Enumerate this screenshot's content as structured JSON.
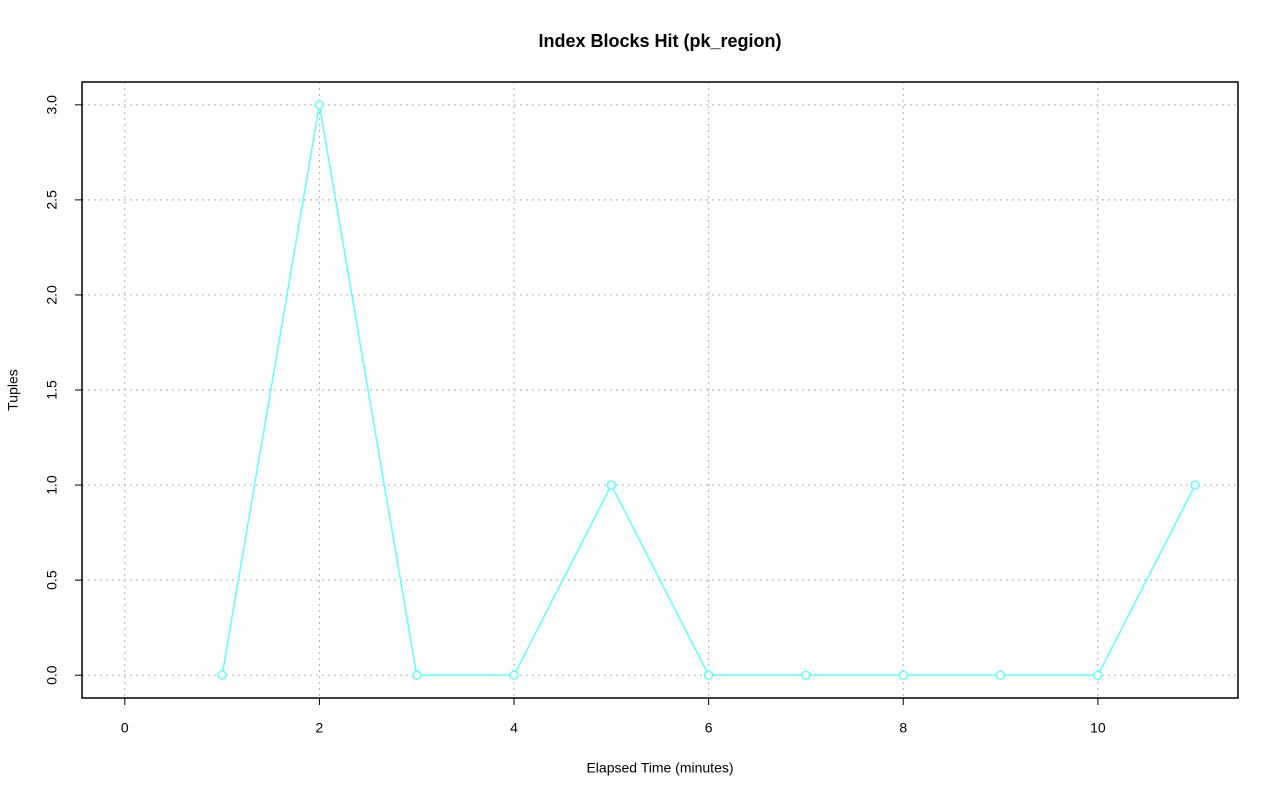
{
  "chart_data": {
    "type": "line",
    "title": "Index Blocks Hit (pk_region)",
    "x_label": "Elapsed Time (minutes)",
    "y_label": "Tuples",
    "x": [
      1,
      2,
      3,
      4,
      5,
      6,
      7,
      8,
      9,
      10,
      11
    ],
    "series": [
      {
        "color": "#66ffff",
        "values": [
          0,
          3,
          0,
          0,
          1,
          0,
          0,
          0,
          0,
          0,
          1
        ]
      }
    ],
    "xlim": [
      -0.44,
      11.44
    ],
    "xticks": [
      0,
      2,
      4,
      6,
      8,
      10
    ],
    "ylim": [
      -0.12,
      3.12
    ],
    "yticks": [
      {
        "value": 0,
        "label": "0.0"
      },
      {
        "value": 0.5,
        "label": "0.5"
      },
      {
        "value": 1,
        "label": "1.0"
      },
      {
        "value": 1.5,
        "label": "1.5"
      },
      {
        "value": 2,
        "label": "2.0"
      },
      {
        "value": 2.5,
        "label": "2.5"
      },
      {
        "value": 3,
        "label": "3.0"
      }
    ],
    "grid": true
  }
}
